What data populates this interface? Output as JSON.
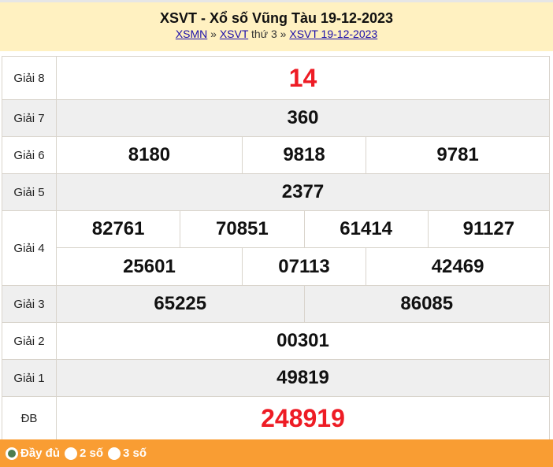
{
  "header": {
    "title": "XSVT - Xổ số Vũng Tàu 19-12-2023",
    "crumb1": "XSMN",
    "sep1": "»",
    "crumb2": "XSVT",
    "crumb2_suffix": "thứ 3",
    "sep2": "»",
    "crumb3": "XSVT 19-12-2023"
  },
  "results": {
    "g8": {
      "label": "Giải 8",
      "values": [
        "14"
      ]
    },
    "g7": {
      "label": "Giải 7",
      "values": [
        "360"
      ]
    },
    "g6": {
      "label": "Giải 6",
      "values": [
        "8180",
        "9818",
        "9781"
      ]
    },
    "g5": {
      "label": "Giải 5",
      "values": [
        "2377"
      ]
    },
    "g4": {
      "label": "Giải 4",
      "values": [
        "82761",
        "70851",
        "61414",
        "91127",
        "25601",
        "07113",
        "42469"
      ]
    },
    "g3": {
      "label": "Giải 3",
      "values": [
        "65225",
        "86085"
      ]
    },
    "g2": {
      "label": "Giải 2",
      "values": [
        "00301"
      ]
    },
    "g1": {
      "label": "Giải 1",
      "values": [
        "49819"
      ]
    },
    "db": {
      "label": "ĐB",
      "values": [
        "248919"
      ]
    }
  },
  "footer": {
    "options": [
      "Đầy đủ",
      "2 số",
      "3 số"
    ],
    "selected": "Đầy đủ"
  },
  "colors": {
    "header_bg": "#fff1c1",
    "footer_bg": "#f99d33",
    "highlight": "#ee1c25",
    "alt_row": "#efefef"
  }
}
